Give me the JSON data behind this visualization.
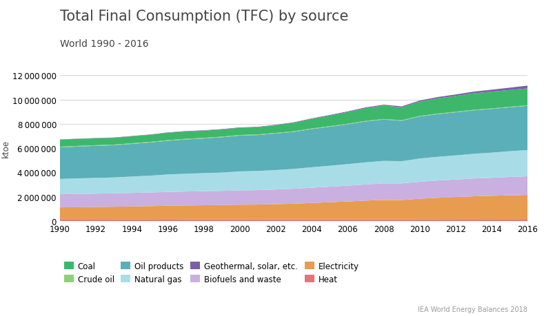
{
  "title": "Total Final Consumption (TFC) by source",
  "subtitle": "World 1990 - 2016",
  "ylabel": "ktoe",
  "source": "IEA World Energy Balances 2018",
  "years": [
    1990,
    1991,
    1992,
    1993,
    1994,
    1995,
    1996,
    1997,
    1998,
    1999,
    2000,
    2001,
    2002,
    2003,
    2004,
    2005,
    2006,
    2007,
    2008,
    2009,
    2010,
    2011,
    2012,
    2013,
    2014,
    2015,
    2016
  ],
  "series": {
    "Heat": {
      "color": "#e8727a",
      "values": [
        155000,
        153000,
        151000,
        150000,
        149000,
        150000,
        152000,
        148000,
        146000,
        144000,
        142000,
        141000,
        142000,
        143000,
        144000,
        145000,
        146000,
        147000,
        148000,
        146000,
        149000,
        150000,
        151000,
        152000,
        153000,
        154000,
        155000
      ]
    },
    "Electricity": {
      "color": "#e89c50",
      "values": [
        970000,
        990000,
        1010000,
        1030000,
        1055000,
        1080000,
        1110000,
        1135000,
        1155000,
        1175000,
        1205000,
        1215000,
        1245000,
        1285000,
        1345000,
        1405000,
        1465000,
        1535000,
        1595000,
        1585000,
        1685000,
        1765000,
        1825000,
        1885000,
        1925000,
        1965000,
        1995000
      ]
    },
    "Biofuels and waste": {
      "color": "#c9b0e0",
      "values": [
        1080000,
        1090000,
        1095000,
        1100000,
        1110000,
        1120000,
        1135000,
        1145000,
        1155000,
        1165000,
        1180000,
        1190000,
        1210000,
        1230000,
        1255000,
        1280000,
        1305000,
        1330000,
        1355000,
        1370000,
        1400000,
        1420000,
        1440000,
        1465000,
        1485000,
        1510000,
        1535000
      ]
    },
    "Natural gas": {
      "color": "#a8dde8",
      "values": [
        1260000,
        1280000,
        1295000,
        1310000,
        1350000,
        1385000,
        1440000,
        1465000,
        1490000,
        1515000,
        1560000,
        1575000,
        1600000,
        1635000,
        1685000,
        1725000,
        1770000,
        1820000,
        1855000,
        1825000,
        1915000,
        1955000,
        1990000,
        2035000,
        2070000,
        2120000,
        2160000
      ]
    },
    "Oil products": {
      "color": "#5aafb8",
      "values": [
        2600000,
        2620000,
        2640000,
        2650000,
        2690000,
        2730000,
        2770000,
        2825000,
        2850000,
        2900000,
        2950000,
        2960000,
        3010000,
        3050000,
        3140000,
        3210000,
        3280000,
        3370000,
        3400000,
        3330000,
        3460000,
        3510000,
        3550000,
        3575000,
        3595000,
        3615000,
        3645000
      ]
    },
    "Crude oil": {
      "color": "#8ed07a",
      "values": [
        55000,
        55000,
        54000,
        54000,
        53000,
        53000,
        52000,
        52000,
        51000,
        51000,
        50000,
        50000,
        50000,
        49000,
        49000,
        48000,
        48000,
        47000,
        47000,
        47000,
        46000,
        46000,
        45000,
        45000,
        44000,
        44000,
        43000
      ]
    },
    "Coal": {
      "color": "#3db86a",
      "values": [
        580000,
        570000,
        565000,
        560000,
        570000,
        580000,
        610000,
        610000,
        595000,
        590000,
        590000,
        590000,
        630000,
        700000,
        790000,
        870000,
        960000,
        1050000,
        1110000,
        1060000,
        1180000,
        1260000,
        1300000,
        1360000,
        1380000,
        1380000,
        1390000
      ]
    },
    "Geothermal, solar, etc.": {
      "color": "#7b5ea7",
      "values": [
        20000,
        22000,
        23000,
        24000,
        25000,
        26000,
        28000,
        29000,
        30000,
        31000,
        33000,
        35000,
        37000,
        40000,
        44000,
        49000,
        55000,
        62000,
        70000,
        78000,
        90000,
        105000,
        120000,
        140000,
        165000,
        195000,
        230000
      ]
    }
  },
  "stack_order": [
    "Heat",
    "Electricity",
    "Biofuels and waste",
    "Natural gas",
    "Oil products",
    "Crude oil",
    "Coal",
    "Geothermal, solar, etc."
  ],
  "legend_order": [
    "Coal",
    "Crude oil",
    "Oil products",
    "Natural gas",
    "Geothermal, solar, etc.",
    "Biofuels and waste",
    "Electricity",
    "Heat"
  ],
  "ylim": [
    0,
    12000000
  ],
  "yticks": [
    0,
    2000000,
    4000000,
    6000000,
    8000000,
    10000000,
    12000000
  ],
  "background_color": "#ffffff",
  "plot_area_color": "#ffffff",
  "grid_color": "#d8d8d8",
  "title_fontsize": 15,
  "subtitle_fontsize": 10,
  "tick_fontsize": 8.5,
  "legend_fontsize": 8.5
}
